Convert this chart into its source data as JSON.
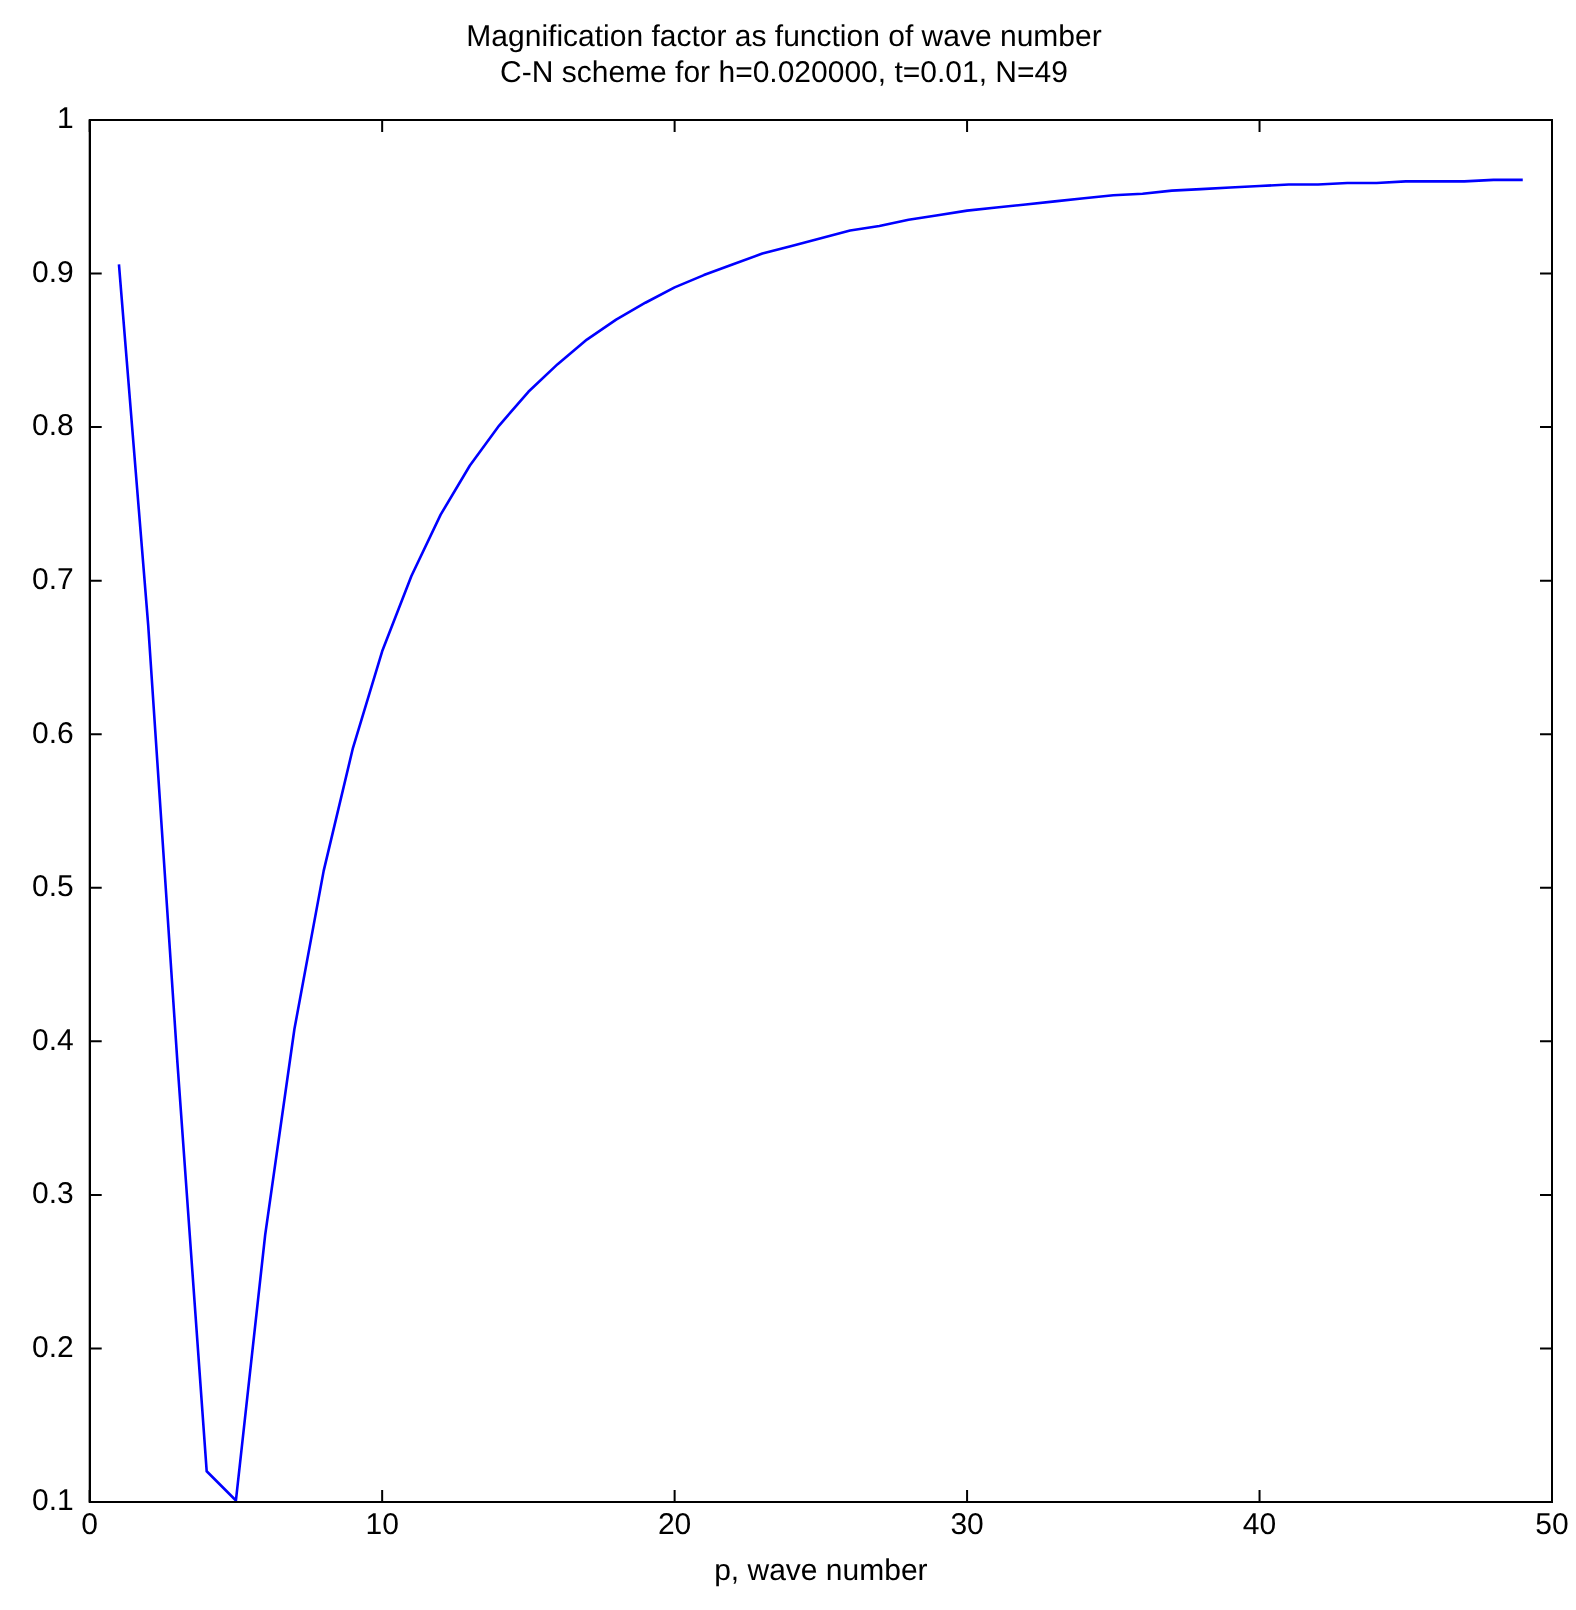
{
  "chart_data": {
    "type": "line",
    "title": "Magnification factor as function of wave number",
    "subtitle": "C-N scheme for h=0.020000, t=0.01, N=49",
    "xlabel": "p, wave number",
    "x": [
      1,
      2,
      3,
      4,
      5,
      6,
      7,
      8,
      9,
      10,
      11,
      12,
      13,
      14,
      15,
      16,
      17,
      18,
      19,
      20,
      21,
      22,
      23,
      24,
      25,
      26,
      27,
      28,
      29,
      30,
      31,
      32,
      33,
      34,
      35,
      36,
      37,
      38,
      39,
      40,
      41,
      42,
      43,
      44,
      45,
      46,
      47,
      48,
      49
    ],
    "series": [
      {
        "color": "#0000ff",
        "values": [
          0.906,
          0.671,
          0.386,
          0.12,
          0.101,
          0.274,
          0.408,
          0.511,
          0.591,
          0.654,
          0.703,
          0.743,
          0.775,
          0.801,
          0.823,
          0.841,
          0.857,
          0.87,
          0.881,
          0.891,
          0.899,
          0.906,
          0.913,
          0.918,
          0.923,
          0.928,
          0.931,
          0.935,
          0.938,
          0.941,
          0.943,
          0.945,
          0.947,
          0.949,
          0.951,
          0.952,
          0.954,
          0.955,
          0.956,
          0.957,
          0.958,
          0.958,
          0.959,
          0.959,
          0.96,
          0.96,
          0.96,
          0.961,
          0.961
        ]
      }
    ],
    "xlim": [
      0,
      50
    ],
    "xticks": [
      0,
      10,
      20,
      30,
      40,
      50
    ],
    "ylim": [
      0.1,
      1
    ],
    "yticks": [
      0.1,
      0.2,
      0.3,
      0.4,
      0.5,
      0.6,
      0.7,
      0.8,
      0.9,
      1
    ],
    "grid": false,
    "legend": false,
    "marker": "none",
    "line_style": "solid"
  }
}
